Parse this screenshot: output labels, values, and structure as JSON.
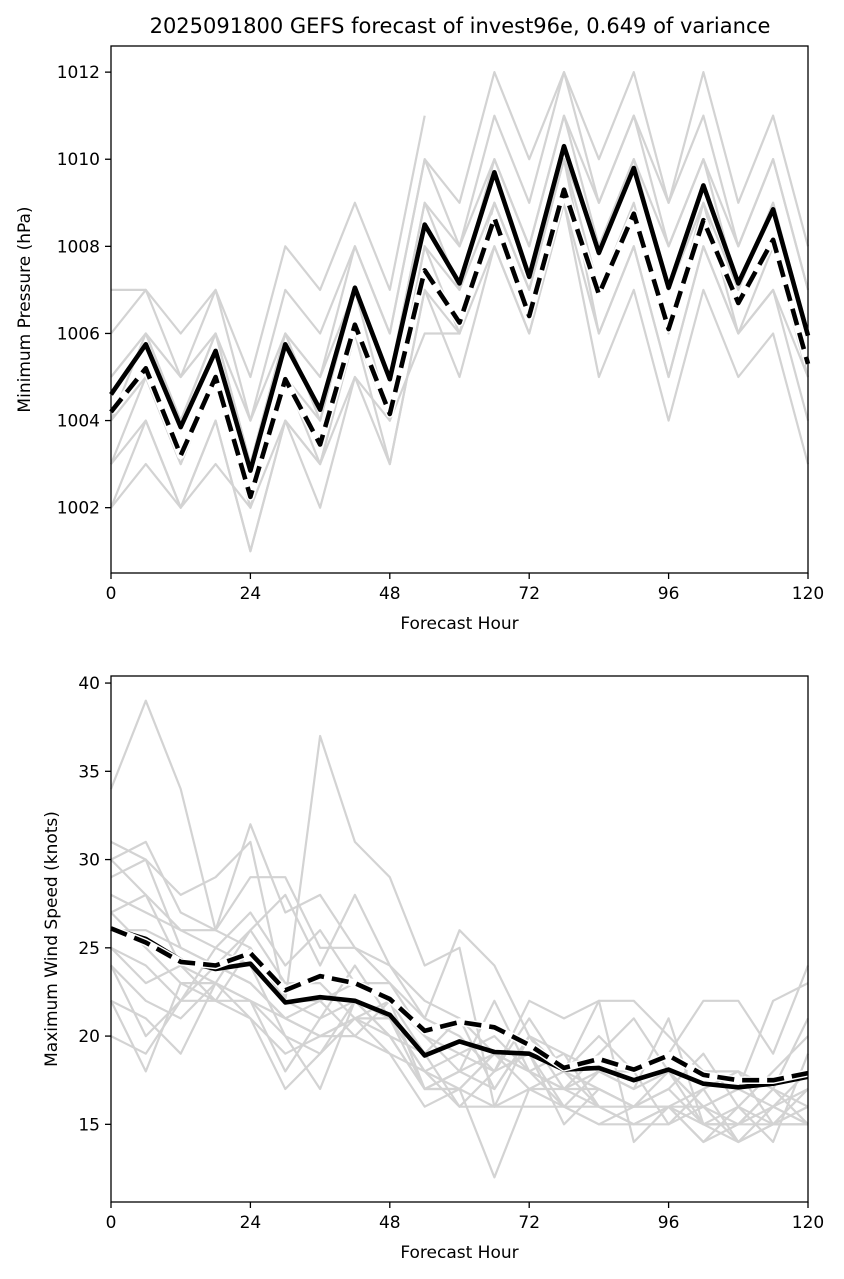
{
  "chart_data": [
    {
      "type": "line",
      "title": "2025091800 GEFS forecast of invest96e, 0.649 of variance",
      "xlabel": "Forecast Hour",
      "ylabel": "Minimum Pressure (hPa)",
      "xlim": [
        0,
        120
      ],
      "ylim": [
        1000.5,
        1012.6
      ],
      "xticks": [
        "0",
        "24",
        "48",
        "72",
        "96",
        "120"
      ],
      "yticks": [
        "1002",
        "1004",
        "1006",
        "1008",
        "1010",
        "1012"
      ],
      "x": [
        0,
        6,
        12,
        18,
        24,
        30,
        36,
        42,
        48,
        54,
        60,
        66,
        72,
        78,
        84,
        90,
        96,
        102,
        108,
        114,
        120
      ],
      "members": [
        [
          1007,
          1007,
          1006,
          1007,
          1005,
          1008,
          1007,
          1009,
          1007,
          1011,
          null,
          null,
          null,
          null,
          null,
          null,
          null,
          null,
          null,
          null,
          null
        ],
        [
          1006,
          1007,
          1005,
          1007,
          1004,
          1007,
          1006,
          1008,
          1006,
          1010,
          1009,
          1012,
          1010,
          1012,
          1010,
          1012,
          1009,
          1012,
          1009,
          1011,
          1008
        ],
        [
          1005,
          1006,
          1005,
          1006,
          1004,
          1006,
          1005,
          1008,
          1006,
          1010,
          1008,
          1011,
          1009,
          1012,
          1009,
          1011,
          1009,
          1011,
          1008,
          1010,
          1007
        ],
        [
          1005,
          1006,
          1004,
          1006,
          1003,
          1006,
          1005,
          1007,
          1005,
          1009,
          1008,
          1010,
          1008,
          1011,
          1009,
          1011,
          1008,
          1010,
          1008,
          1010,
          1007
        ],
        [
          1004,
          1006,
          1004,
          1006,
          1003,
          1006,
          1004,
          1007,
          1005,
          1009,
          1007,
          1010,
          1008,
          1011,
          1008,
          1010,
          1008,
          1010,
          1007,
          1009,
          1006
        ],
        [
          1004,
          1005,
          1003,
          1005,
          1002,
          1005,
          1004,
          1007,
          1004,
          1008,
          1007,
          1009,
          1007,
          1010,
          1008,
          1010,
          1007,
          1009,
          1007,
          1009,
          1006
        ],
        [
          1003,
          1005,
          1003,
          1005,
          1002,
          1005,
          1003,
          1006,
          1004,
          1008,
          1006,
          1009,
          1007,
          1010,
          1007,
          1009,
          1006,
          1009,
          1006,
          1008,
          1005
        ],
        [
          1003,
          1004,
          1002,
          1004,
          1001,
          1004,
          1003,
          1006,
          1003,
          1007,
          1006,
          1008,
          1006,
          1009,
          1006,
          1008,
          1005,
          1008,
          1006,
          1007,
          1004
        ],
        [
          1002,
          1004,
          1002,
          1004,
          1001,
          1004,
          1002,
          1005,
          1003,
          1007,
          1005,
          1008,
          1006,
          1009,
          1005,
          1007,
          1004,
          1007,
          1005,
          1006,
          1003
        ],
        [
          1002,
          1003,
          1002,
          1003,
          1002,
          1004,
          1003,
          1005,
          1004,
          1006,
          1006,
          1009,
          1007,
          1010,
          1006,
          1008,
          1005,
          1008,
          1006,
          1007,
          1005
        ]
      ],
      "mean": [
        1004.6,
        1005.75,
        1003.85,
        1005.6,
        1002.85,
        1005.75,
        1004.25,
        1007.05,
        1004.95,
        1008.5,
        1007.15,
        1009.7,
        1007.3,
        1010.3,
        1007.85,
        1009.8,
        1007.05,
        1009.4,
        1007.15,
        1008.85,
        1005.95
      ],
      "dashed": [
        1004.2,
        1005.2,
        1003.2,
        1005.0,
        1002.25,
        1004.95,
        1003.45,
        1006.2,
        1004.15,
        1007.45,
        1006.25,
        1008.65,
        1006.4,
        1009.3,
        1006.9,
        1008.75,
        1006.1,
        1008.6,
        1006.7,
        1008.15,
        1005.3
      ]
    },
    {
      "type": "line",
      "xlabel": "Forecast Hour",
      "ylabel": "Maximum Wind Speed (knots)",
      "xlim": [
        0,
        120
      ],
      "ylim": [
        10.6,
        40.4
      ],
      "xticks": [
        "0",
        "24",
        "48",
        "72",
        "96",
        "120"
      ],
      "yticks": [
        "15",
        "20",
        "25",
        "30",
        "35",
        "40"
      ],
      "x": [
        0,
        6,
        12,
        18,
        24,
        30,
        36,
        42,
        48,
        54,
        60,
        66,
        72,
        78,
        84,
        90,
        96,
        102,
        108,
        114,
        120
      ],
      "members": [
        [
          34,
          39,
          34,
          26,
          25,
          22,
          37,
          31,
          29,
          24,
          25,
          16,
          20,
          19,
          18,
          17,
          18,
          16,
          17,
          16,
          17
        ],
        [
          31,
          30,
          28,
          29,
          31,
          22,
          22,
          23,
          23,
          21,
          26,
          24,
          20,
          18,
          20,
          18,
          19,
          22,
          22,
          19,
          24
        ],
        [
          30,
          31,
          27,
          26,
          32,
          27,
          28,
          25,
          24,
          21,
          20,
          18,
          21,
          18,
          22,
          22,
          20,
          18,
          18,
          17,
          21
        ],
        [
          30,
          28,
          26,
          26,
          29,
          29,
          25,
          25,
          23,
          20,
          18,
          22,
          18,
          17,
          19,
          21,
          18,
          16,
          17,
          22,
          23
        ],
        [
          29,
          30,
          25,
          24,
          26,
          28,
          24,
          28,
          24,
          22,
          21,
          17,
          20,
          18,
          17,
          16,
          17,
          19,
          16,
          18,
          20
        ],
        [
          28,
          27,
          26,
          25,
          27,
          24,
          26,
          23,
          22,
          19,
          21,
          19,
          19,
          16,
          18,
          17,
          21,
          15,
          15,
          16,
          18
        ],
        [
          27,
          28,
          24,
          23,
          26,
          23,
          23,
          21,
          22,
          20,
          19,
          20,
          18,
          19,
          16,
          15,
          16,
          17,
          14,
          15,
          17
        ],
        [
          27,
          25,
          23,
          22,
          25,
          22,
          21,
          24,
          21,
          18,
          19,
          18,
          22,
          21,
          22,
          14,
          16,
          14,
          16,
          14,
          19
        ],
        [
          26,
          26,
          25,
          24,
          23,
          21,
          22,
          20,
          22,
          17,
          18,
          19,
          17,
          18,
          16,
          16,
          18,
          15,
          15,
          17,
          16
        ],
        [
          25,
          24,
          22,
          25,
          24,
          20,
          19,
          22,
          21,
          18,
          17,
          19,
          18,
          17,
          18,
          18,
          15,
          17,
          18,
          15,
          15
        ],
        [
          25,
          23,
          24,
          22,
          22,
          21,
          20,
          21,
          20,
          19,
          16,
          18,
          19,
          15,
          17,
          16,
          16,
          16,
          15,
          16,
          15
        ],
        [
          24,
          22,
          21,
          23,
          22,
          18,
          21,
          22,
          20,
          17,
          18,
          17,
          20,
          17,
          17,
          16,
          17,
          15,
          16,
          15,
          16
        ],
        [
          24,
          20,
          22,
          22,
          21,
          19,
          20,
          20,
          19,
          16,
          17,
          16,
          16,
          16,
          15,
          15,
          16,
          14,
          15,
          17,
          15
        ],
        [
          22,
          21,
          19,
          23,
          21,
          17,
          19,
          21,
          19,
          18,
          16,
          16,
          17,
          17,
          16,
          15,
          15,
          16,
          14,
          15,
          16
        ],
        [
          22,
          18,
          23,
          23,
          22,
          20,
          17,
          22,
          20,
          17,
          17,
          12,
          17,
          16,
          15,
          16,
          16,
          15,
          14,
          16,
          15
        ],
        [
          20,
          19,
          22,
          24,
          23,
          21,
          20,
          21,
          21,
          17,
          17,
          19,
          18,
          16,
          16,
          15,
          16,
          15,
          15,
          15,
          15
        ]
      ],
      "mean": [
        26.1,
        25.5,
        24.3,
        23.8,
        24.1,
        21.9,
        22.2,
        22.0,
        21.2,
        18.9,
        19.7,
        19.1,
        19.0,
        18.1,
        18.2,
        17.5,
        18.1,
        17.3,
        17.1,
        17.3,
        17.7
      ],
      "dashed": [
        26.1,
        25.3,
        24.2,
        24.0,
        24.7,
        22.6,
        23.4,
        23.0,
        22.1,
        20.3,
        20.8,
        20.5,
        19.5,
        18.2,
        18.7,
        18.1,
        18.9,
        17.8,
        17.5,
        17.5,
        17.9
      ]
    }
  ]
}
